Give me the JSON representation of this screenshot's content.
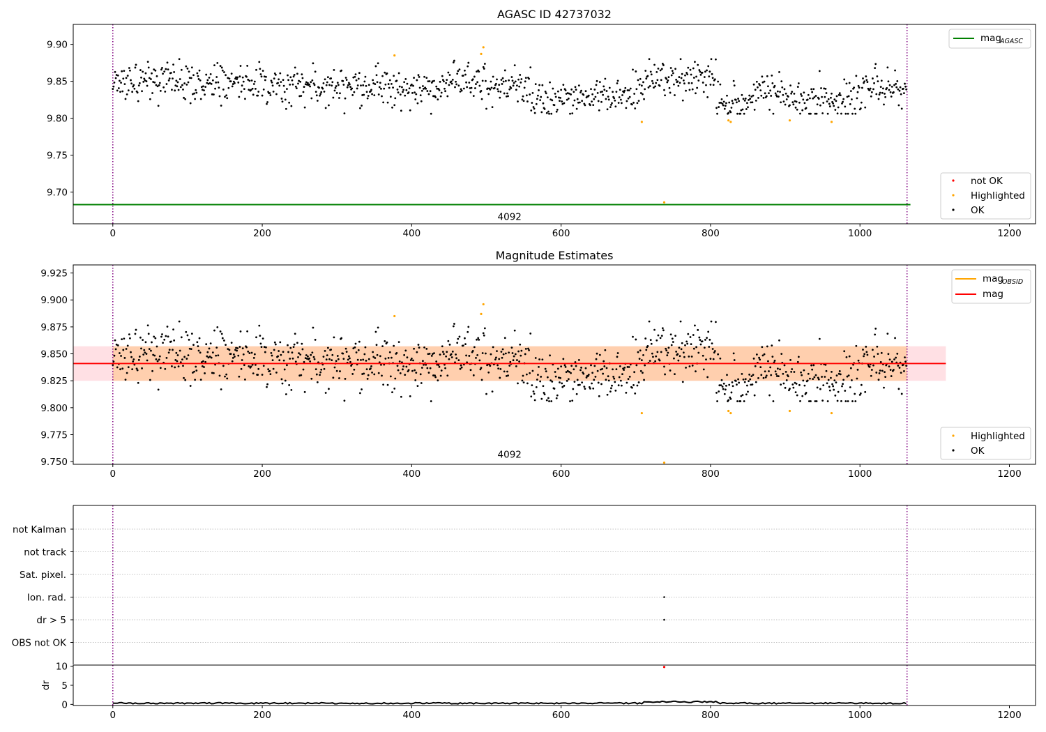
{
  "colors": {
    "ok": "#000000",
    "highlighted": "#ffa500",
    "not_ok": "#ff0000",
    "mag_agasc": "#008000",
    "mag_obsid": "#ffa500",
    "mag": "#ff0000",
    "obs_boundary": "#800080",
    "band_inner": "#ffcfae",
    "band_outer": "#ffe0e4",
    "grid": "#b0b0b0"
  },
  "chart_data": [
    {
      "id": "agasc",
      "type": "scatter",
      "title": "AGASC ID 42737032",
      "xlim": [
        -53,
        1235
      ],
      "ylim": [
        9.657,
        9.927
      ],
      "x_ticks": [
        0,
        200,
        400,
        600,
        800,
        1000,
        1200
      ],
      "y_ticks": [
        9.7,
        9.75,
        9.8,
        9.85,
        9.9
      ],
      "mag_agasc": 9.683,
      "obs_boundaries": [
        0,
        1063
      ],
      "obsid_label": {
        "text": "4092",
        "x": 531,
        "y": 9.667
      },
      "series": [
        {
          "name": "not OK",
          "color": "#ff0000",
          "points": []
        },
        {
          "name": "Highlighted",
          "color": "#ffa500",
          "points": [
            [
              377,
              9.885
            ],
            [
              493,
              9.887
            ],
            [
              496,
              9.896
            ],
            [
              708,
              9.795
            ],
            [
              738,
              9.686
            ],
            [
              824,
              9.797
            ],
            [
              827,
              9.795
            ],
            [
              906,
              9.797
            ],
            [
              962,
              9.795
            ]
          ]
        },
        {
          "name": "OK",
          "color": "#000000",
          "generated_like": "mag ~ 9.84, 1063 points"
        }
      ],
      "legend": {
        "position": "top-right",
        "entries": [
          {
            "label_main": "mag",
            "label_sub": "AGASC",
            "color": "#008000"
          }
        ]
      },
      "legend2": {
        "position": "lower-right",
        "entries": [
          "not OK",
          "Highlighted",
          "OK"
        ]
      }
    },
    {
      "id": "mag_estimates",
      "type": "scatter",
      "title": "Magnitude Estimates",
      "xlim": [
        -53,
        1235
      ],
      "ylim": [
        9.7475,
        9.9325
      ],
      "x_ticks": [
        0,
        200,
        400,
        600,
        800,
        1000,
        1200
      ],
      "y_ticks": [
        9.75,
        9.775,
        9.8,
        9.825,
        9.85,
        9.875,
        9.9,
        9.925
      ],
      "mag": 9.841,
      "mag_obsid": 9.841,
      "band_outer": [
        9.825,
        9.857
      ],
      "band_inner": [
        9.825,
        9.857
      ],
      "band_inner_x": [
        0,
        1063
      ],
      "band_outer_x": [
        -53,
        1115
      ],
      "obs_boundaries": [
        0,
        1063
      ],
      "obsid_label": {
        "text": "4092",
        "x": 531,
        "y": 9.757
      },
      "series": [
        {
          "name": "Highlighted",
          "color": "#ffa500",
          "points": [
            [
              377,
              9.885
            ],
            [
              493,
              9.887
            ],
            [
              496,
              9.896
            ],
            [
              708,
              9.795
            ],
            [
              738,
              9.749
            ],
            [
              824,
              9.797
            ],
            [
              827,
              9.795
            ],
            [
              906,
              9.797
            ],
            [
              962,
              9.795
            ]
          ]
        },
        {
          "name": "OK",
          "color": "#000000",
          "generated_like": "mag ~ 9.84, 1063 points"
        }
      ],
      "legend": {
        "position": "top-right",
        "entries": [
          {
            "label_main": "mag",
            "label_sub": "OBSID",
            "color": "#ffa500"
          },
          {
            "label_main": "mag",
            "label_sub": "",
            "color": "#ff0000"
          }
        ]
      },
      "legend2": {
        "position": "lower-right",
        "entries": [
          "Highlighted",
          "OK"
        ]
      }
    },
    {
      "id": "flags",
      "type": "scatter",
      "categories": [
        "not Kalman",
        "not track",
        "Sat. pixel.",
        "Ion. rad.",
        "dr > 5",
        "OBS not OK"
      ],
      "points": [
        [
          738,
          "Ion. rad."
        ],
        [
          738,
          "dr > 5"
        ]
      ],
      "xlim": [
        -53,
        1235
      ],
      "obs_boundaries": [
        0,
        1063
      ]
    },
    {
      "id": "dr",
      "type": "line",
      "ylabel": "dr",
      "xlim": [
        -53,
        1235
      ],
      "ylim": [
        -0.3,
        10.3
      ],
      "x_ticks": [
        0,
        200,
        400,
        600,
        800,
        1000,
        1200
      ],
      "y_ticks": [
        0,
        5,
        10
      ],
      "not_ok_point": [
        738,
        9.8
      ],
      "baseline": 0.3,
      "obs_boundaries": [
        0,
        1063
      ]
    }
  ],
  "legend_labels": {
    "not_ok": "not OK",
    "highlighted": "Highlighted",
    "ok": "OK"
  }
}
